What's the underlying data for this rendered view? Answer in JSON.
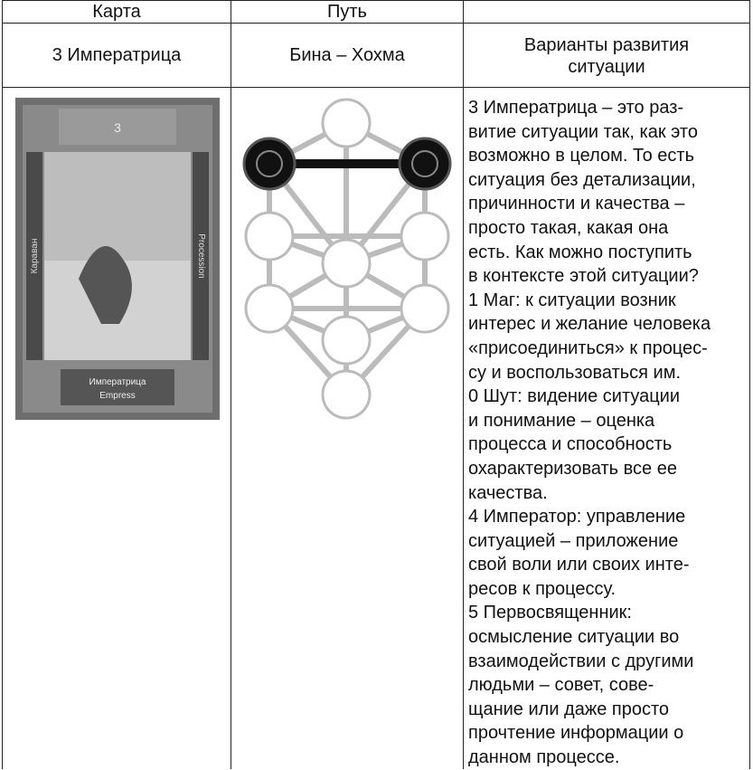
{
  "table": {
    "header": [
      "Карта",
      "Путь"
    ],
    "row": {
      "card": "3 Императрица",
      "path": "Бина – Хохма",
      "variants_heading": [
        "Варианты развития",
        "ситуации"
      ]
    },
    "card_image": {
      "number": "3",
      "left": "Караван",
      "right": "Procession",
      "name_ru": "Императрица",
      "name_en": "Empress"
    },
    "text_lines": [
      "3 Императрица – это раз-",
      "витие ситуации так, как это",
      "возможно в целом. То есть",
      "ситуация без детализации,",
      "причинности и качества –",
      "просто такая, какая она",
      "есть. Как можно поступить",
      "в контексте этой ситуации?",
      "1 Маг: к ситуации возник",
      "интерес и желание человека",
      "«присоединиться» к процес-",
      "су и воспользоваться им.",
      "0 Шут: видение ситуации",
      "и понимание – оценка",
      "процесса и способность",
      "охарактеризовать все ее",
      "качества.",
      "4 Император: управление",
      "ситуацией – приложение",
      "свой воли или своих инте-",
      "ресов к процессу.",
      "5 Первосвященник:",
      "осмысление ситуации во",
      "взаимодействии с другими",
      "людьми – совет, сове-",
      "щание или даже просто",
      "прочтение информации о",
      "данном процессе."
    ]
  }
}
